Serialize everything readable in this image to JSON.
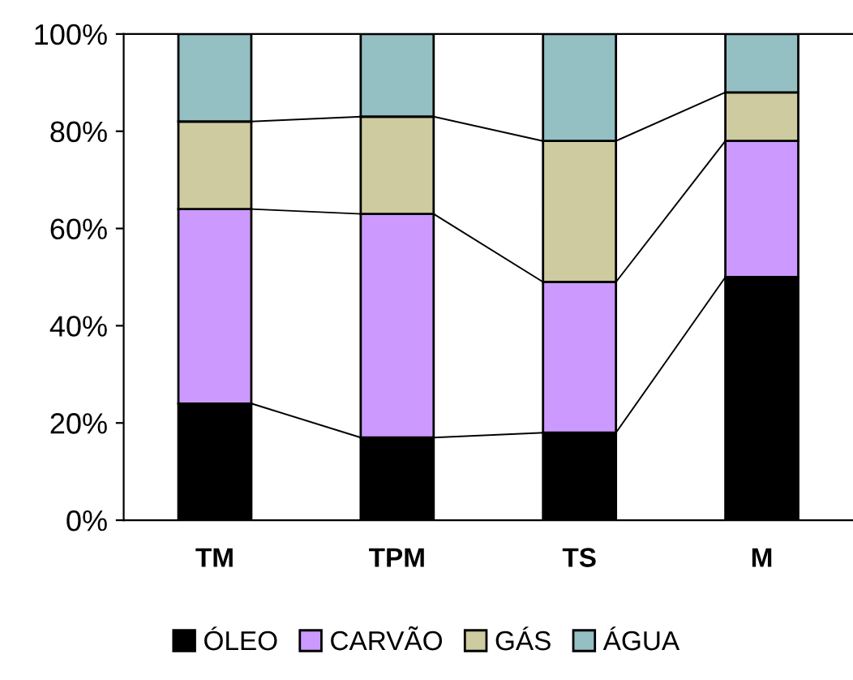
{
  "chart_data": {
    "type": "bar",
    "stacked": true,
    "categories": [
      "TM",
      "TPM",
      "TS",
      "M"
    ],
    "series": [
      {
        "name": "ÓLEO",
        "color": "#000000",
        "values": [
          24,
          17,
          18,
          50
        ]
      },
      {
        "name": "CARVÃO",
        "color": "#cc99ff",
        "values": [
          40,
          46,
          31,
          28
        ]
      },
      {
        "name": "GÁS",
        "color": "#cfcba0",
        "values": [
          18,
          20,
          29,
          10
        ]
      },
      {
        "name": "ÁGUA",
        "color": "#94bfc3",
        "values": [
          18,
          17,
          22,
          12
        ]
      }
    ],
    "ylim": [
      0,
      100
    ],
    "yticks": [
      {
        "value": 0,
        "label": "0%"
      },
      {
        "value": 20,
        "label": "20%"
      },
      {
        "value": 40,
        "label": "40%"
      },
      {
        "value": 60,
        "label": "60%"
      },
      {
        "value": 80,
        "label": "80%"
      },
      {
        "value": 100,
        "label": "100%"
      }
    ],
    "grid": false,
    "legend": "bottom"
  }
}
